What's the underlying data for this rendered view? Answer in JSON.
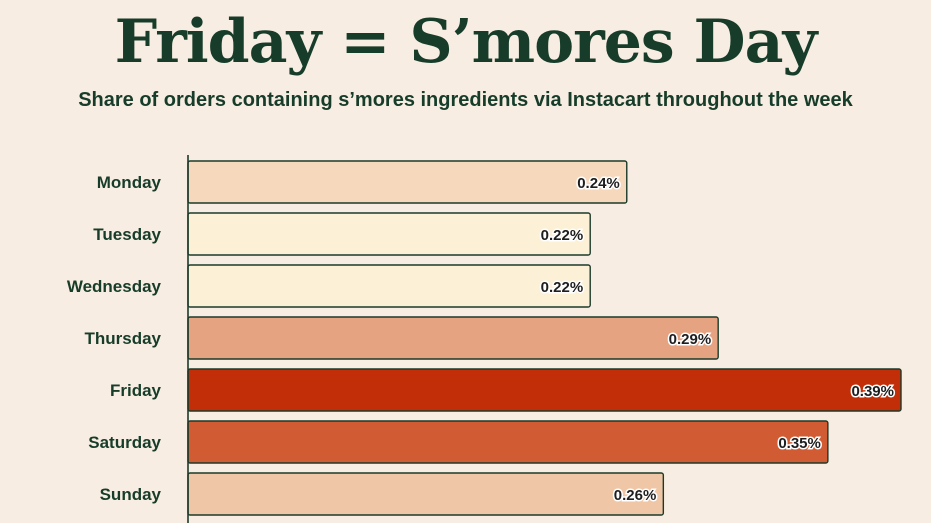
{
  "header": {
    "title": "Friday = S’mores Day",
    "subtitle": "Share of orders containing s’mores ingredients via Instacart throughout the week"
  },
  "colors": {
    "background": "#f8ede2",
    "text": "#173d2a",
    "axis": "#1b3a2a"
  },
  "chart_data": {
    "type": "bar",
    "orientation": "horizontal",
    "title": "Friday = S’mores Day",
    "subtitle": "Share of orders containing s’mores ingredients via Instacart throughout the week",
    "xlabel": "",
    "ylabel": "",
    "unit": "%",
    "xlim": [
      0,
      0.39
    ],
    "grid": false,
    "categories": [
      "Monday",
      "Tuesday",
      "Wednesday",
      "Thursday",
      "Friday",
      "Saturday",
      "Sunday"
    ],
    "values": [
      0.24,
      0.22,
      0.22,
      0.29,
      0.39,
      0.35,
      0.26
    ],
    "value_labels": [
      "0.24%",
      "0.22%",
      "0.22%",
      "0.29%",
      "0.39%",
      "0.35%",
      "0.26%"
    ],
    "bar_colors": [
      "#f6d8bc",
      "#fcf0d7",
      "#fcf0d7",
      "#e5a382",
      "#c12e08",
      "#d15c33",
      "#f0c7a6"
    ]
  }
}
